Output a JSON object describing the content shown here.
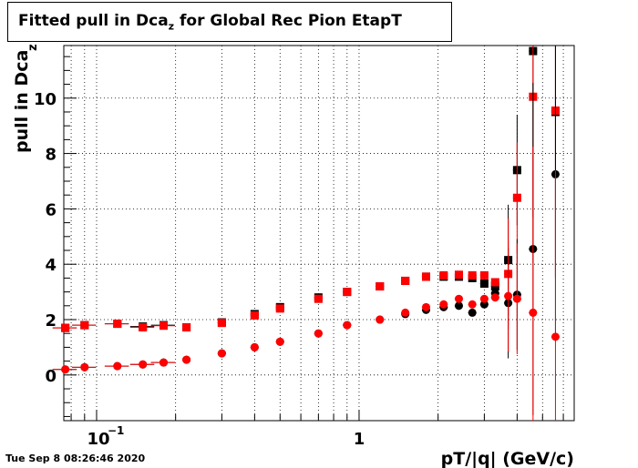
{
  "title": {
    "main": "Fitted pull in Dca",
    "sub": "z",
    "rest": " for Global Rec Pion EtapT"
  },
  "timestamp": "Tue Sep  8 08:26:46 2020",
  "chart_data": {
    "type": "scatter",
    "title": "Fitted pull in Dca_z for Global Rec Pion EtapT",
    "xlabel": "pT/|q| (GeV/c)",
    "ylabel": "pull in Dca_z",
    "xscale": "log",
    "xlim": [
      0.075,
      6.6
    ],
    "ylim": [
      -1.65,
      11.9
    ],
    "xticklabels": [
      "10^-1",
      "1"
    ],
    "yticks": [
      0,
      2,
      4,
      6,
      8,
      10
    ],
    "grid": true,
    "colors": {
      "black": "#000000",
      "red": "#ff0000"
    },
    "series": [
      {
        "marker": "square",
        "color": "#000000",
        "x": [
          0.076,
          0.09,
          0.12,
          0.15,
          0.18,
          0.22,
          0.3,
          0.4,
          0.5,
          0.7,
          0.9,
          1.2,
          1.5,
          1.8,
          2.1,
          2.4,
          2.7,
          3.0,
          3.3,
          3.7,
          4.0,
          4.6,
          5.6
        ],
        "y": [
          1.7,
          1.8,
          1.85,
          1.75,
          1.8,
          1.72,
          1.9,
          2.2,
          2.45,
          2.8,
          3.0,
          3.2,
          3.4,
          3.55,
          3.55,
          3.55,
          3.5,
          3.3,
          3.2,
          4.15,
          7.4,
          11.7,
          9.5
        ]
      },
      {
        "marker": "square",
        "color": "#ff0000",
        "x": [
          0.076,
          0.09,
          0.12,
          0.15,
          0.18,
          0.22,
          0.3,
          0.4,
          0.5,
          0.7,
          0.9,
          1.2,
          1.5,
          1.8,
          2.1,
          2.4,
          2.7,
          3.0,
          3.3,
          3.7,
          4.0,
          4.6,
          5.6
        ],
        "y": [
          1.7,
          1.8,
          1.85,
          1.72,
          1.78,
          1.72,
          1.88,
          2.15,
          2.4,
          2.75,
          3.0,
          3.2,
          3.4,
          3.55,
          3.6,
          3.62,
          3.6,
          3.6,
          3.35,
          3.65,
          6.4,
          10.05,
          9.55
        ]
      },
      {
        "marker": "circle",
        "color": "#000000",
        "x": [
          0.076,
          0.09,
          0.12,
          0.15,
          0.18,
          0.22,
          0.3,
          0.4,
          0.5,
          0.7,
          0.9,
          1.2,
          1.5,
          1.8,
          2.1,
          2.4,
          2.7,
          3.0,
          3.3,
          3.7,
          4.0,
          4.6,
          5.6
        ],
        "y": [
          0.2,
          0.28,
          0.32,
          0.38,
          0.45,
          0.55,
          0.78,
          1.0,
          1.2,
          1.5,
          1.8,
          2.0,
          2.2,
          2.35,
          2.45,
          2.5,
          2.25,
          2.55,
          2.95,
          2.6,
          2.9,
          4.55,
          7.25
        ]
      },
      {
        "marker": "circle",
        "color": "#ff0000",
        "x": [
          0.076,
          0.09,
          0.12,
          0.15,
          0.18,
          0.22,
          0.3,
          0.4,
          0.5,
          0.7,
          0.9,
          1.2,
          1.5,
          1.8,
          2.1,
          2.4,
          2.7,
          3.0,
          3.3,
          3.7,
          4.0,
          4.6,
          5.6
        ],
        "y": [
          0.2,
          0.28,
          0.32,
          0.38,
          0.45,
          0.55,
          0.78,
          1.0,
          1.2,
          1.5,
          1.8,
          2.0,
          2.25,
          2.45,
          2.55,
          2.75,
          2.55,
          2.75,
          2.8,
          2.85,
          2.75,
          2.25,
          1.38
        ]
      }
    ]
  }
}
